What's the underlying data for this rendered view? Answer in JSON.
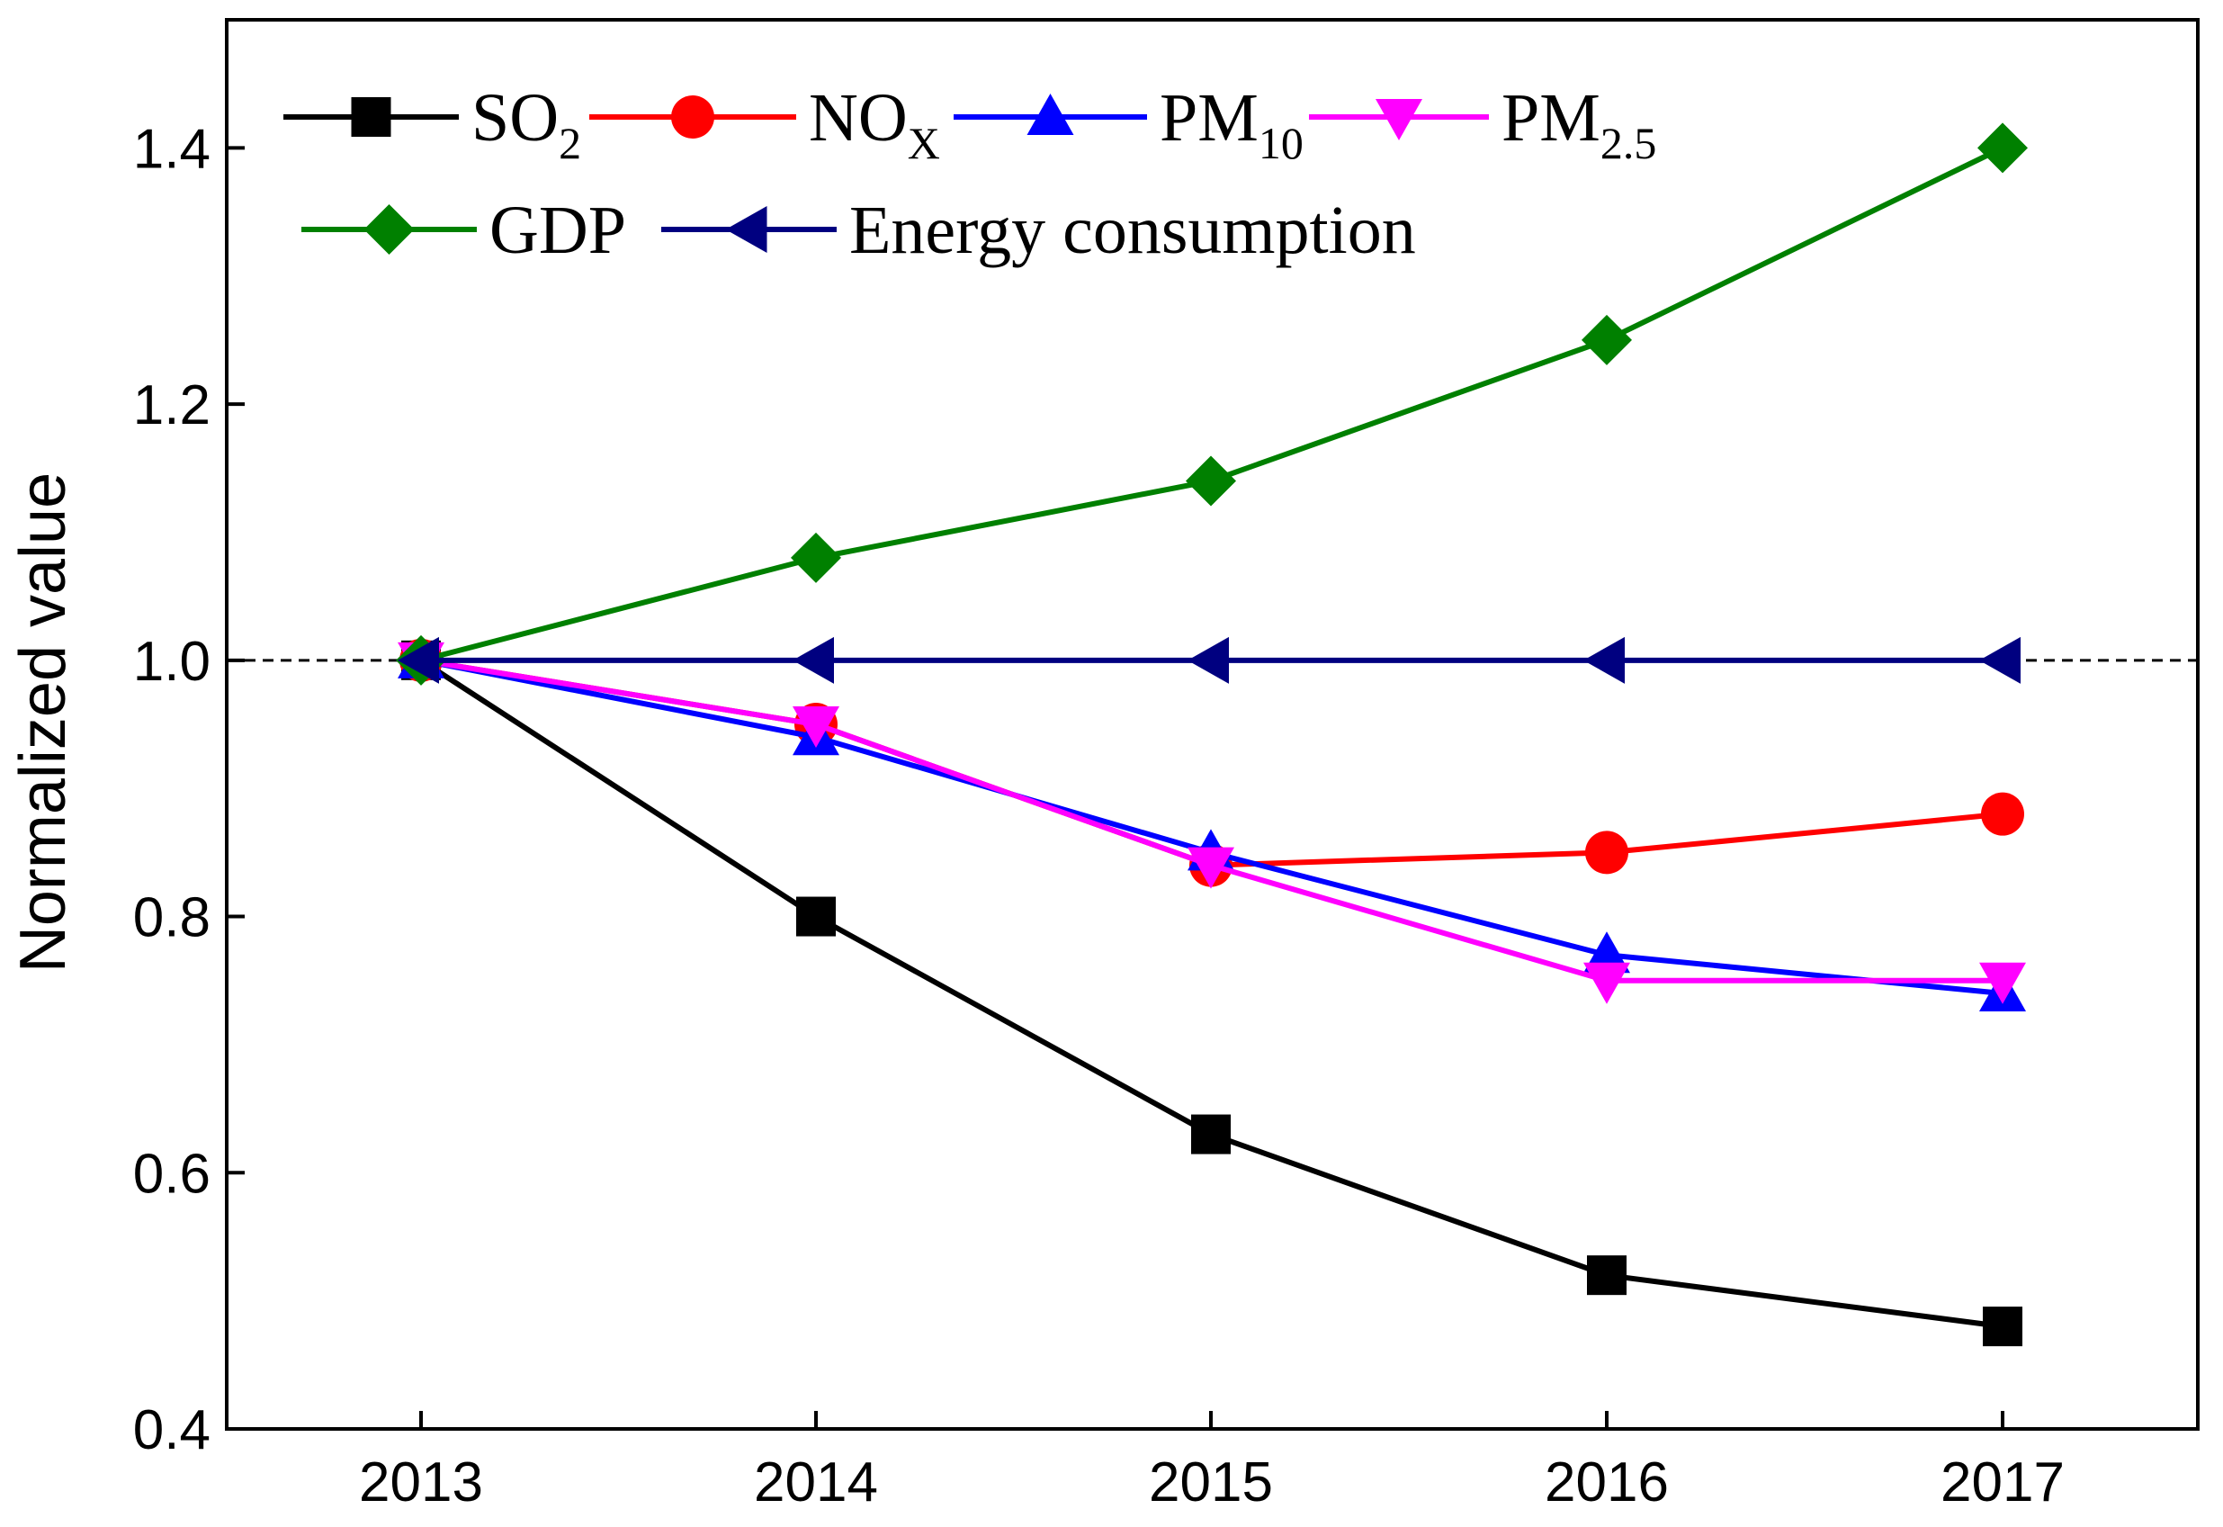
{
  "chart_data": {
    "type": "line",
    "title": "",
    "xlabel": "",
    "ylabel": "Normalized value",
    "categories": [
      "2013",
      "2014",
      "2015",
      "2016",
      "2017"
    ],
    "yticks": [
      "0.4",
      "0.6",
      "0.8",
      "1.0",
      "1.2",
      "1.4"
    ],
    "ylim": [
      0.4,
      1.5
    ],
    "reference_line": 1.0,
    "series": [
      {
        "key": "so2",
        "name": "SO2",
        "legend_main": "SO",
        "legend_sub": "2",
        "color": "#000000",
        "marker": "square",
        "values": [
          1.0,
          0.8,
          0.63,
          0.52,
          0.48
        ]
      },
      {
        "key": "nox",
        "name": "NOX",
        "legend_main": "NO",
        "legend_sub": "X",
        "color": "#ff0000",
        "marker": "circle",
        "values": [
          1.0,
          0.95,
          0.84,
          0.85,
          0.88
        ]
      },
      {
        "key": "pm10",
        "name": "PM10",
        "legend_main": "PM",
        "legend_sub": "10",
        "color": "#0000ff",
        "marker": "triangle-up",
        "values": [
          1.0,
          0.94,
          0.85,
          0.77,
          0.74
        ]
      },
      {
        "key": "pm25",
        "name": "PM2.5",
        "legend_main": "PM",
        "legend_sub": "2.5",
        "color": "#ff00ff",
        "marker": "triangle-down",
        "values": [
          1.0,
          0.95,
          0.84,
          0.75,
          0.75
        ]
      },
      {
        "key": "gdp",
        "name": "GDP",
        "legend_main": "GDP",
        "legend_sub": "",
        "color": "#008000",
        "marker": "diamond",
        "values": [
          1.0,
          1.08,
          1.14,
          1.25,
          1.4
        ]
      },
      {
        "key": "energy",
        "name": "Energy consumption",
        "legend_main": "Energy consumption",
        "legend_sub": "",
        "color": "#000080",
        "marker": "triangle-left",
        "values": [
          1.0,
          1.0,
          1.0,
          1.0,
          1.0
        ]
      }
    ],
    "legend": "top-left"
  }
}
